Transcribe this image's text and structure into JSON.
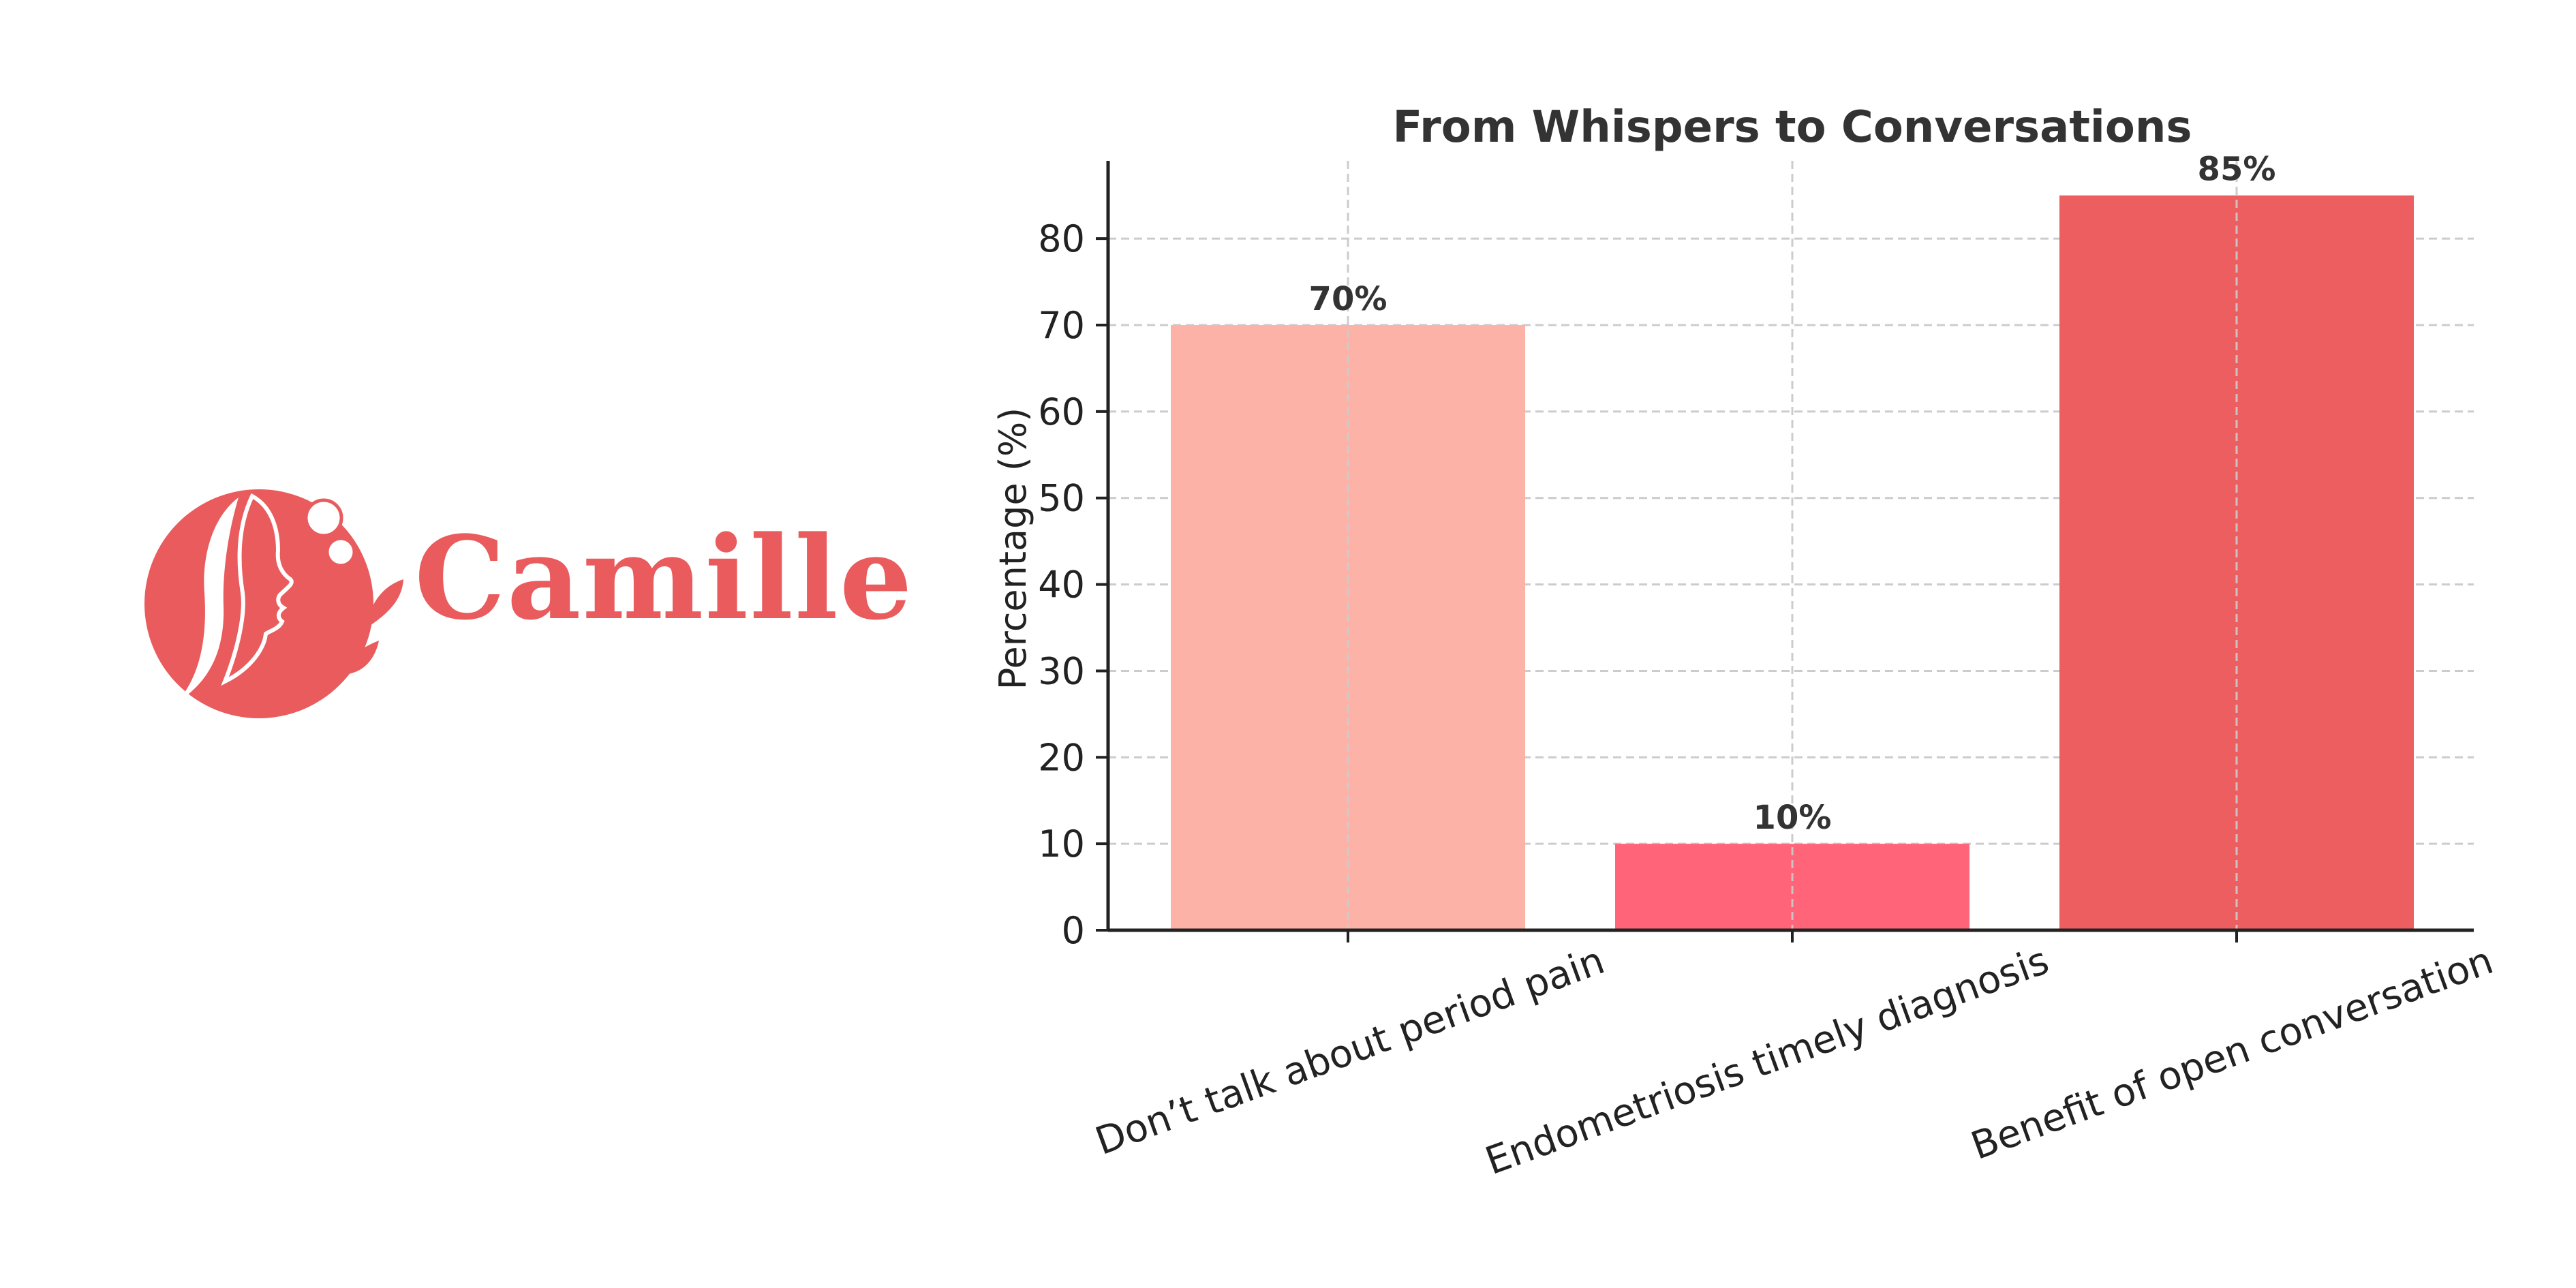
{
  "logo": {
    "name": "Camille",
    "color": "#E95B5C"
  },
  "chart_data": {
    "type": "bar",
    "title": "From Whispers to Conversations",
    "xlabel": "",
    "ylabel": "Percentage (%)",
    "categories": [
      "Don’t talk about period pain",
      "Endometriosis timely diagnosis",
      "Benefit of open conversation"
    ],
    "values": [
      70,
      10,
      85
    ],
    "data_labels": [
      "70%",
      "10%",
      "85%"
    ],
    "colors": [
      "#FDB2A8",
      "#FF6479",
      "#EC5E5F"
    ],
    "yticks": [
      0,
      10,
      20,
      30,
      40,
      50,
      60,
      70,
      80
    ],
    "ylim": [
      0,
      89
    ],
    "grid": true,
    "legend": "none"
  }
}
